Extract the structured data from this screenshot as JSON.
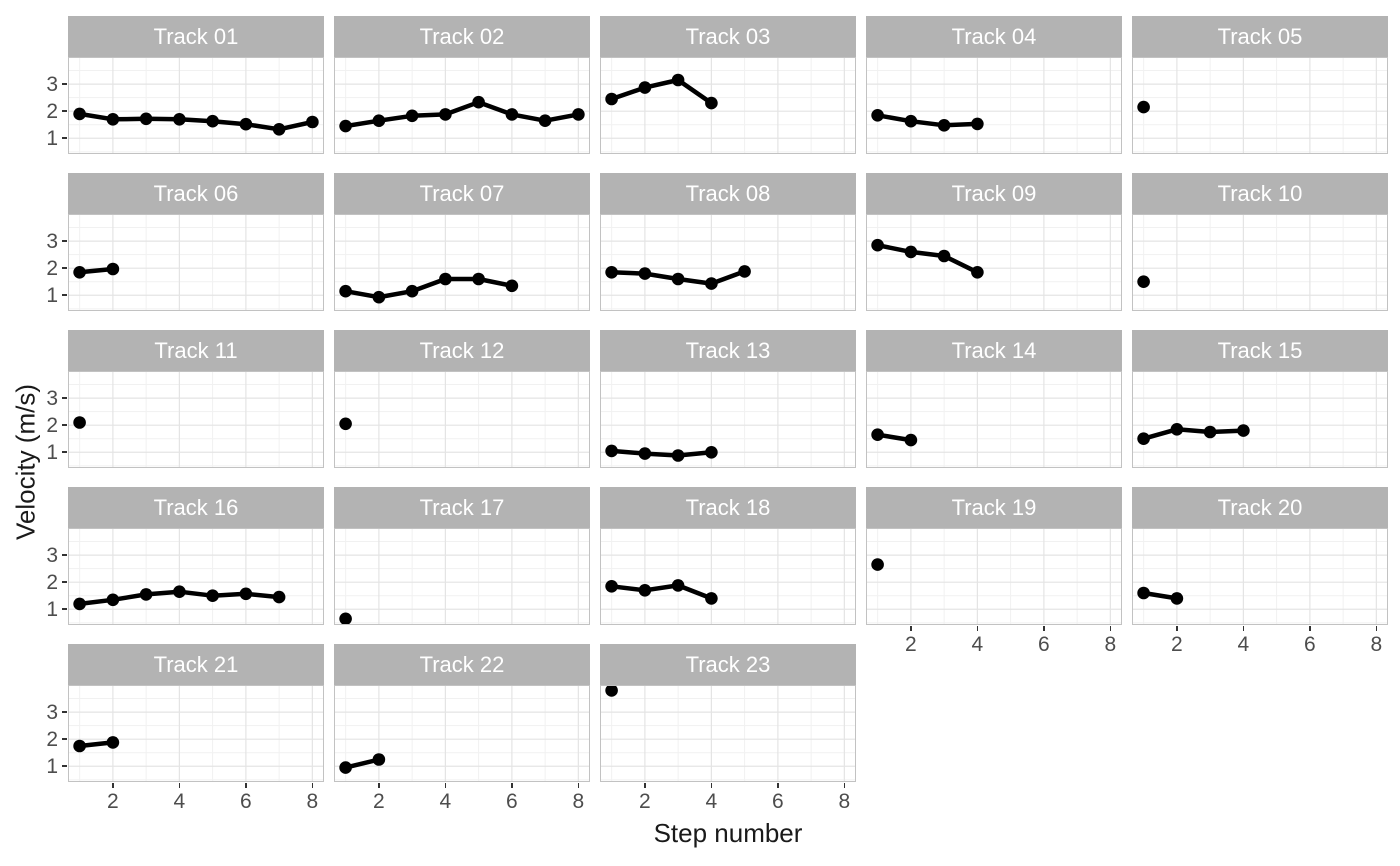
{
  "chart_data": {
    "type": "line",
    "title": "",
    "xlabel": "Step number",
    "ylabel": "Velocity (m/s)",
    "facet_variable": "Track",
    "layout": {
      "ncol": 5,
      "nrow": 5,
      "legend": "none",
      "grid": "major+minor"
    },
    "xlim": [
      0.65,
      8.35
    ],
    "ylim": [
      0.42,
      4.0
    ],
    "x_ticks": [
      2,
      4,
      6,
      8
    ],
    "x_minor_ticks": [
      1,
      3,
      5,
      7
    ],
    "y_ticks": [
      1,
      2,
      3
    ],
    "y_minor_ticks": [
      0.5,
      1.5,
      2.5,
      3.5
    ],
    "facets": [
      {
        "label": "Track 01",
        "x": [
          1,
          2,
          3,
          4,
          5,
          6,
          7,
          8
        ],
        "y": [
          1.9,
          1.7,
          1.72,
          1.7,
          1.63,
          1.52,
          1.33,
          1.6
        ]
      },
      {
        "label": "Track 02",
        "x": [
          1,
          2,
          3,
          4,
          5,
          6,
          7,
          8
        ],
        "y": [
          1.45,
          1.65,
          1.83,
          1.88,
          2.33,
          1.88,
          1.65,
          1.88
        ]
      },
      {
        "label": "Track 03",
        "x": [
          1,
          2,
          3,
          4
        ],
        "y": [
          2.45,
          2.87,
          3.15,
          2.3
        ]
      },
      {
        "label": "Track 04",
        "x": [
          1,
          2,
          3,
          4
        ],
        "y": [
          1.85,
          1.63,
          1.48,
          1.53
        ]
      },
      {
        "label": "Track 05",
        "x": [
          1
        ],
        "y": [
          2.15
        ]
      },
      {
        "label": "Track 06",
        "x": [
          1,
          2
        ],
        "y": [
          1.85,
          1.97
        ]
      },
      {
        "label": "Track 07",
        "x": [
          1,
          2,
          3,
          4,
          5,
          6
        ],
        "y": [
          1.15,
          0.93,
          1.15,
          1.6,
          1.6,
          1.35
        ]
      },
      {
        "label": "Track 08",
        "x": [
          1,
          2,
          3,
          4,
          5
        ],
        "y": [
          1.85,
          1.8,
          1.6,
          1.43,
          1.88
        ]
      },
      {
        "label": "Track 09",
        "x": [
          1,
          2,
          3,
          4
        ],
        "y": [
          2.85,
          2.6,
          2.45,
          1.85
        ]
      },
      {
        "label": "Track 10",
        "x": [
          1
        ],
        "y": [
          1.5
        ]
      },
      {
        "label": "Track 11",
        "x": [
          1
        ],
        "y": [
          2.1
        ]
      },
      {
        "label": "Track 12",
        "x": [
          1
        ],
        "y": [
          2.05
        ]
      },
      {
        "label": "Track 13",
        "x": [
          1,
          2,
          3,
          4
        ],
        "y": [
          1.05,
          0.95,
          0.88,
          1.0
        ]
      },
      {
        "label": "Track 14",
        "x": [
          1,
          2
        ],
        "y": [
          1.65,
          1.45
        ]
      },
      {
        "label": "Track 15",
        "x": [
          1,
          2,
          3,
          4
        ],
        "y": [
          1.5,
          1.85,
          1.75,
          1.8
        ]
      },
      {
        "label": "Track 16",
        "x": [
          1,
          2,
          3,
          4,
          5,
          6,
          7
        ],
        "y": [
          1.2,
          1.35,
          1.55,
          1.65,
          1.5,
          1.57,
          1.45
        ]
      },
      {
        "label": "Track 17",
        "x": [
          1
        ],
        "y": [
          0.65
        ]
      },
      {
        "label": "Track 18",
        "x": [
          1,
          2,
          3,
          4
        ],
        "y": [
          1.85,
          1.7,
          1.88,
          1.4
        ]
      },
      {
        "label": "Track 19",
        "x": [
          1
        ],
        "y": [
          2.65
        ]
      },
      {
        "label": "Track 20",
        "x": [
          1,
          2
        ],
        "y": [
          1.6,
          1.4
        ]
      },
      {
        "label": "Track 21",
        "x": [
          1,
          2
        ],
        "y": [
          1.75,
          1.88
        ]
      },
      {
        "label": "Track 22",
        "x": [
          1,
          2
        ],
        "y": [
          0.95,
          1.25
        ]
      },
      {
        "label": "Track 23",
        "x": [
          1
        ],
        "y": [
          3.8
        ]
      }
    ]
  },
  "colors": {
    "strip_bg": "#b3b3b3",
    "strip_text": "#ffffff",
    "panel_bg": "#ffffff",
    "panel_border": "#c2c2c2",
    "grid_major": "#e4e4e4",
    "grid_minor": "#f1f1f1",
    "line": "#000000",
    "point": "#000000",
    "tick_label": "#4d4d4d",
    "tick_mark": "#333333",
    "axis_title": "#1a1a1a"
  }
}
